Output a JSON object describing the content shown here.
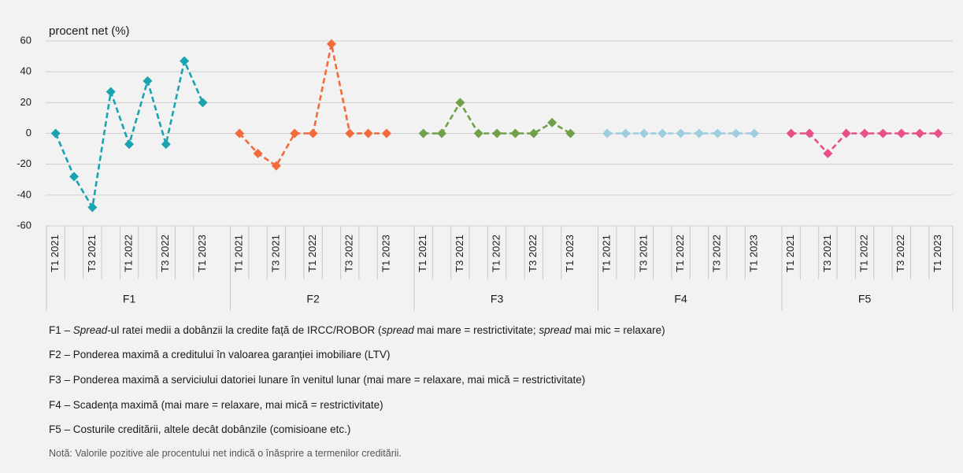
{
  "chart_data": {
    "type": "line",
    "y_label": "procent net (%)",
    "categories": [
      "T1 2021",
      null,
      "T3 2021",
      null,
      "T1 2022",
      null,
      "T3 2022",
      null,
      "T1 2023"
    ],
    "series": [
      {
        "name": "F1",
        "color": "#1aa3b0",
        "values": [
          0,
          -28,
          -48,
          27,
          -7,
          34,
          -7,
          47,
          20
        ]
      },
      {
        "name": "F2",
        "color": "#f26b3a",
        "values": [
          0,
          -13,
          -21,
          0,
          0,
          58,
          0,
          0,
          0
        ]
      },
      {
        "name": "F3",
        "color": "#72a04a",
        "values": [
          0,
          0,
          20,
          0,
          0,
          0,
          0,
          7,
          0
        ]
      },
      {
        "name": "F4",
        "color": "#9ecde0",
        "values": [
          0,
          0,
          0,
          0,
          0,
          0,
          0,
          0,
          0
        ]
      },
      {
        "name": "F5",
        "color": "#e8508a",
        "values": [
          0,
          0,
          -13,
          0,
          0,
          0,
          0,
          0,
          0
        ]
      }
    ],
    "ylim": [
      -60,
      60
    ],
    "yticks": [
      -60,
      -40,
      -20,
      0,
      20,
      40,
      60
    ],
    "grid": true
  },
  "notes": [
    [
      "F1 – ",
      "Spread",
      "-ul ratei medii a dobânzii la credite față de IRCC/ROBOR (",
      "spread",
      " mai mare = restrictivitate; ",
      "spread",
      " mai mic = relaxare)"
    ],
    [
      "F2 – Ponderea maximă a creditului în valoarea garanției imobiliare (LTV)"
    ],
    [
      "F3 – Ponderea maximă a serviciului datoriei lunare în venitul lunar (mai mare = relaxare, mai mică = restrictivitate)"
    ],
    [
      "F4 – Scadența maximă (mai mare = relaxare, mai mică = restrictivitate)"
    ],
    [
      "F5 – Costurile creditării, altele decât dobânzile (comisioane etc.)"
    ]
  ],
  "footnote": "Notă: Valorile pozitive ale procentului net indică o înăsprire a termenilor creditării."
}
